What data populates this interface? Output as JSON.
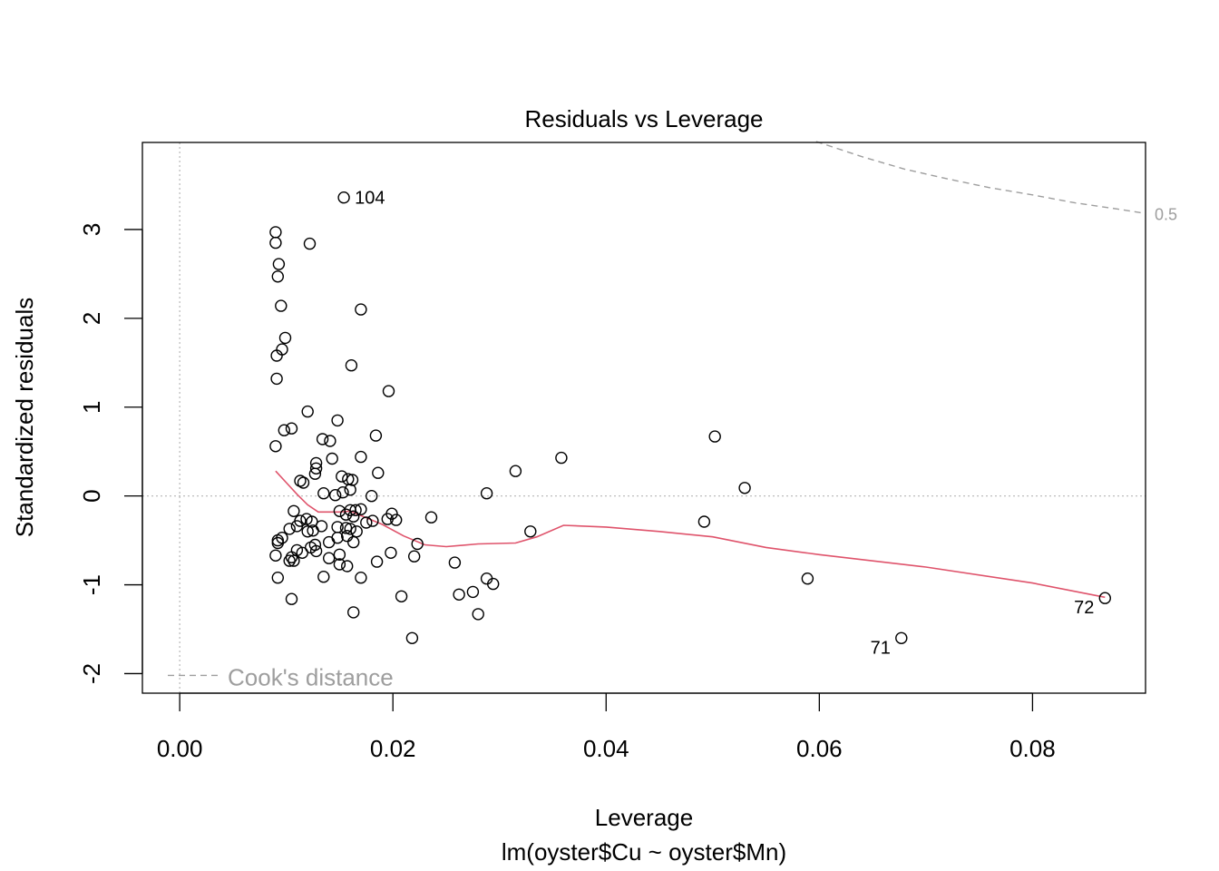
{
  "chart_data": {
    "type": "scatter",
    "title": "Residuals vs Leverage",
    "xlabel": "Leverage",
    "subtitle": "lm(oyster$Cu ~ oyster$Mn)",
    "ylabel": "Standardized residuals",
    "xlim": [
      -0.0035,
      0.0906
    ],
    "ylim": [
      -2.22,
      3.98
    ],
    "xticks": [
      {
        "value": 0.0,
        "label": "0.00"
      },
      {
        "value": 0.02,
        "label": "0.02"
      },
      {
        "value": 0.04,
        "label": "0.04"
      },
      {
        "value": 0.06,
        "label": "0.06"
      },
      {
        "value": 0.08,
        "label": "0.08"
      }
    ],
    "yticks": [
      {
        "value": -2,
        "label": "-2"
      },
      {
        "value": -1,
        "label": "-1"
      },
      {
        "value": 0,
        "label": "0"
      },
      {
        "value": 1,
        "label": "1"
      },
      {
        "value": 2,
        "label": "2"
      },
      {
        "value": 3,
        "label": "3"
      }
    ],
    "points": [
      [
        0.0154,
        3.36
      ],
      [
        0.009,
        2.97
      ],
      [
        0.009,
        2.85
      ],
      [
        0.0122,
        2.84
      ],
      [
        0.0093,
        2.61
      ],
      [
        0.0092,
        2.47
      ],
      [
        0.0095,
        2.14
      ],
      [
        0.017,
        2.1
      ],
      [
        0.0099,
        1.78
      ],
      [
        0.0096,
        1.65
      ],
      [
        0.0091,
        1.58
      ],
      [
        0.0161,
        1.47
      ],
      [
        0.0091,
        1.32
      ],
      [
        0.0196,
        1.18
      ],
      [
        0.012,
        0.95
      ],
      [
        0.0148,
        0.85
      ],
      [
        0.0098,
        0.74
      ],
      [
        0.0105,
        0.76
      ],
      [
        0.0184,
        0.68
      ],
      [
        0.0134,
        0.64
      ],
      [
        0.0141,
        0.62
      ],
      [
        0.009,
        0.56
      ],
      [
        0.017,
        0.44
      ],
      [
        0.0143,
        0.42
      ],
      [
        0.0128,
        0.37
      ],
      [
        0.0128,
        0.31
      ],
      [
        0.0127,
        0.25
      ],
      [
        0.0186,
        0.26
      ],
      [
        0.0152,
        0.22
      ],
      [
        0.0158,
        0.19
      ],
      [
        0.0162,
        0.18
      ],
      [
        0.0113,
        0.17
      ],
      [
        0.0116,
        0.15
      ],
      [
        0.0153,
        0.04
      ],
      [
        0.0135,
        0.03
      ],
      [
        0.0146,
        0.01
      ],
      [
        0.016,
        0.07
      ],
      [
        0.018,
        0.0
      ],
      [
        0.015,
        -0.17
      ],
      [
        0.016,
        -0.16
      ],
      [
        0.0165,
        -0.16
      ],
      [
        0.017,
        -0.15
      ],
      [
        0.0107,
        -0.17
      ],
      [
        0.0119,
        -0.26
      ],
      [
        0.0113,
        -0.28
      ],
      [
        0.0124,
        -0.29
      ],
      [
        0.0156,
        -0.21
      ],
      [
        0.0163,
        -0.23
      ],
      [
        0.0175,
        -0.3
      ],
      [
        0.0181,
        -0.28
      ],
      [
        0.0195,
        -0.26
      ],
      [
        0.0199,
        -0.2
      ],
      [
        0.0203,
        -0.27
      ],
      [
        0.0133,
        -0.34
      ],
      [
        0.011,
        -0.34
      ],
      [
        0.0103,
        -0.37
      ],
      [
        0.0125,
        -0.39
      ],
      [
        0.0148,
        -0.35
      ],
      [
        0.0156,
        -0.36
      ],
      [
        0.016,
        -0.37
      ],
      [
        0.0166,
        -0.4
      ],
      [
        0.012,
        -0.4
      ],
      [
        0.0092,
        -0.53
      ],
      [
        0.0092,
        -0.5
      ],
      [
        0.0096,
        -0.47
      ],
      [
        0.0127,
        -0.55
      ],
      [
        0.014,
        -0.52
      ],
      [
        0.0163,
        -0.52
      ],
      [
        0.0148,
        -0.47
      ],
      [
        0.0157,
        -0.45
      ],
      [
        0.011,
        -0.61
      ],
      [
        0.0115,
        -0.64
      ],
      [
        0.0123,
        -0.58
      ],
      [
        0.0128,
        -0.62
      ],
      [
        0.009,
        -0.67
      ],
      [
        0.0105,
        -0.69
      ],
      [
        0.0103,
        -0.73
      ],
      [
        0.0107,
        -0.73
      ],
      [
        0.015,
        -0.66
      ],
      [
        0.014,
        -0.7
      ],
      [
        0.015,
        -0.77
      ],
      [
        0.0157,
        -0.79
      ],
      [
        0.0185,
        -0.74
      ],
      [
        0.0198,
        -0.64
      ],
      [
        0.0223,
        -0.54
      ],
      [
        0.022,
        -0.68
      ],
      [
        0.0236,
        -0.24
      ],
      [
        0.0258,
        -0.75
      ],
      [
        0.0092,
        -0.92
      ],
      [
        0.0135,
        -0.91
      ],
      [
        0.017,
        -0.92
      ],
      [
        0.0105,
        -1.16
      ],
      [
        0.0163,
        -1.31
      ],
      [
        0.0208,
        -1.13
      ],
      [
        0.0262,
        -1.11
      ],
      [
        0.0275,
        -1.08
      ],
      [
        0.028,
        -1.33
      ],
      [
        0.0288,
        -0.93
      ],
      [
        0.0294,
        -0.99
      ],
      [
        0.0218,
        -1.6
      ],
      [
        0.0288,
        0.03
      ],
      [
        0.0315,
        0.28
      ],
      [
        0.0329,
        -0.4
      ],
      [
        0.0358,
        0.43
      ],
      [
        0.0492,
        -0.29
      ],
      [
        0.0502,
        0.67
      ],
      [
        0.053,
        0.09
      ],
      [
        0.0589,
        -0.93
      ],
      [
        0.0677,
        -1.6
      ],
      [
        0.0868,
        -1.15
      ]
    ],
    "point_labels": [
      {
        "text": "104",
        "x": 0.0154,
        "y": 3.36,
        "side": "right"
      },
      {
        "text": "71",
        "x": 0.0677,
        "y": -1.6,
        "side": "left"
      },
      {
        "text": "72",
        "x": 0.0868,
        "y": -1.15,
        "side": "left"
      }
    ],
    "smooth_line": {
      "color": "#DF536B",
      "points": [
        [
          0.009,
          0.28
        ],
        [
          0.01,
          0.15
        ],
        [
          0.011,
          0.02
        ],
        [
          0.012,
          -0.1
        ],
        [
          0.013,
          -0.18
        ],
        [
          0.015,
          -0.18
        ],
        [
          0.016,
          -0.17
        ],
        [
          0.017,
          -0.22
        ],
        [
          0.019,
          -0.32
        ],
        [
          0.021,
          -0.45
        ],
        [
          0.023,
          -0.55
        ],
        [
          0.025,
          -0.57
        ],
        [
          0.028,
          -0.54
        ],
        [
          0.0315,
          -0.53
        ],
        [
          0.0335,
          -0.46
        ],
        [
          0.036,
          -0.33
        ],
        [
          0.04,
          -0.35
        ],
        [
          0.045,
          -0.4
        ],
        [
          0.05,
          -0.46
        ],
        [
          0.055,
          -0.58
        ],
        [
          0.06,
          -0.66
        ],
        [
          0.07,
          -0.8
        ],
        [
          0.08,
          -0.98
        ],
        [
          0.0868,
          -1.14
        ]
      ]
    },
    "cooks_contour": {
      "label": "0.5",
      "color": "#9e9e9e",
      "points": [
        [
          0.0597,
          3.99
        ],
        [
          0.064,
          3.82
        ],
        [
          0.068,
          3.68
        ],
        [
          0.072,
          3.57
        ],
        [
          0.076,
          3.47
        ],
        [
          0.08,
          3.39
        ],
        [
          0.084,
          3.3
        ],
        [
          0.088,
          3.23
        ],
        [
          0.0906,
          3.18
        ]
      ]
    },
    "reference_lines": {
      "h": 0,
      "v": 0
    },
    "legend": {
      "label": "Cook's distance",
      "position": "bottom-left"
    },
    "grid": false
  }
}
